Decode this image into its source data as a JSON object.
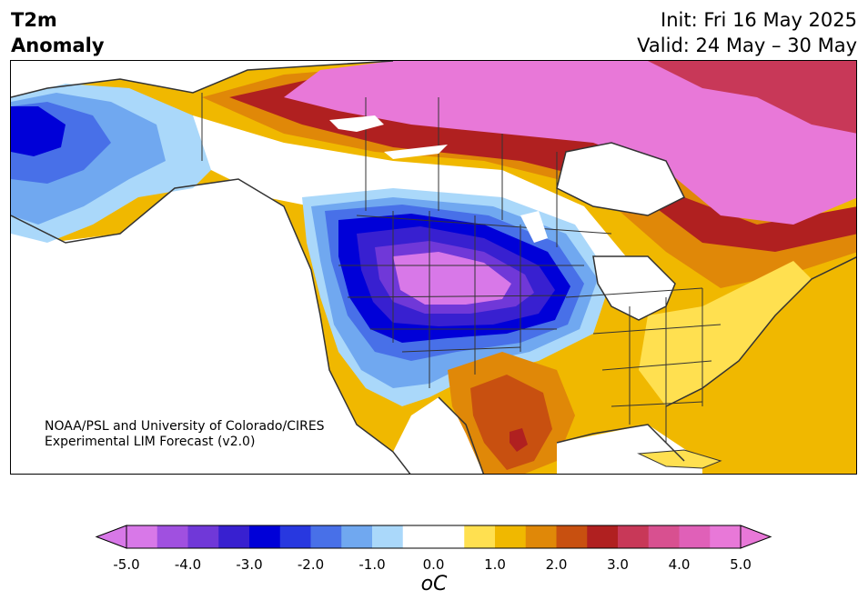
{
  "title": {
    "line1": "T2m",
    "line2": "Anomaly"
  },
  "dates": {
    "init": "Init: Fri 16 May 2025",
    "valid": "Valid: 24 May – 30 May"
  },
  "credit": {
    "line1": "NOAA/PSL and University of Colorado/CIRES",
    "line2": "Experimental LIM Forecast (v2.0)"
  },
  "colorbar": {
    "unit": "oC",
    "ticks": [
      "-5.0",
      "-4.0",
      "-3.0",
      "-2.0",
      "-1.0",
      "0.0",
      "1.0",
      "2.0",
      "3.0",
      "4.0",
      "5.0"
    ],
    "colors": [
      "#d878e8",
      "#a050e0",
      "#7038d8",
      "#3820d0",
      "#0000d8",
      "#2838e0",
      "#4870e8",
      "#70a8f0",
      "#aad8fa",
      "#ffffff",
      "#ffffff",
      "#ffe050",
      "#f0b800",
      "#e08808",
      "#c85010",
      "#b02020",
      "#c83858",
      "#d85090",
      "#e060b8",
      "#e878d8"
    ]
  },
  "colors": {
    "ocean": "#ffffff",
    "coast": "#333333",
    "border": "#333333"
  }
}
